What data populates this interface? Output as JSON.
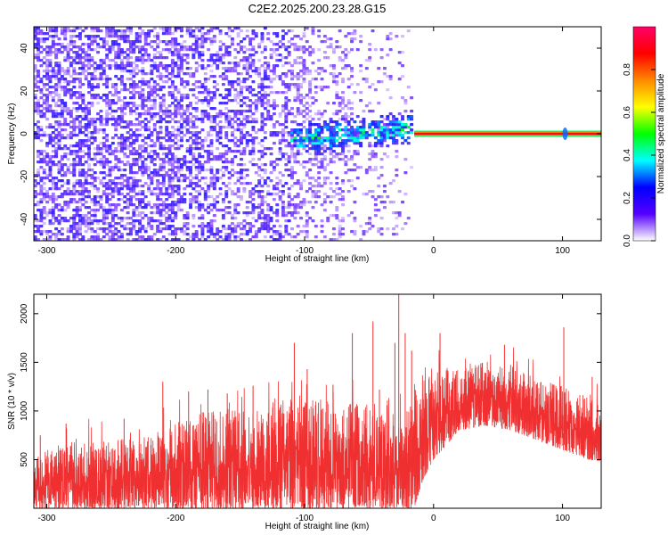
{
  "title": "C2E2.2025.200.23.28.G15",
  "chart_data": [
    {
      "type": "heatmap",
      "title": "C2E2.2025.200.23.28.G15",
      "xlabel": "Height of straight line (km)",
      "ylabel": "Frequency (Hz)",
      "xlim": [
        -310,
        130
      ],
      "ylim": [
        -50,
        50
      ],
      "xticks": [
        -300,
        -200,
        -100,
        0,
        100
      ],
      "yticks": [
        -40,
        -20,
        0,
        20,
        40
      ],
      "colorbar": {
        "label": "Normalized spectral amplitude",
        "range": [
          0,
          1
        ],
        "ticks": [
          0.0,
          0.2,
          0.4,
          0.6,
          0.8
        ],
        "colormap": [
          "#ffffff",
          "#5500ff",
          "#0000ff",
          "#00ffff",
          "#00ff00",
          "#ffff00",
          "#ff8800",
          "#ff0000",
          "#ff0066"
        ]
      },
      "features": {
        "noise_region_x": [
          -310,
          -15
        ],
        "signal_cluster_x": [
          -110,
          -15
        ],
        "signal_cluster_freq": [
          -10,
          6
        ],
        "line_x": [
          -15,
          130
        ],
        "line_freq": 0,
        "line_amplitude": 0.9,
        "spot_x": 102
      }
    },
    {
      "type": "line",
      "xlabel": "Height of straight line (km)",
      "ylabel": "SNR (10 * v/v)",
      "xlim": [
        -310,
        130
      ],
      "ylim": [
        0,
        2200
      ],
      "xticks": [
        -300,
        -200,
        -100,
        0,
        100
      ],
      "yticks": [
        500,
        1000,
        1500,
        2000
      ],
      "color": "#f03030",
      "envelope": {
        "x": [
          -310,
          -300,
          -280,
          -250,
          -220,
          -200,
          -180,
          -150,
          -120,
          -100,
          -80,
          -60,
          -40,
          -25,
          -15,
          -8,
          0,
          10,
          20,
          40,
          60,
          80,
          100,
          110,
          120,
          130
        ],
        "floor": [
          0,
          0,
          0,
          0,
          0,
          0,
          0,
          0,
          0,
          0,
          0,
          0,
          0,
          0,
          0,
          300,
          500,
          650,
          800,
          850,
          800,
          700,
          600,
          550,
          500,
          480
        ],
        "peak": [
          480,
          600,
          650,
          700,
          750,
          900,
          1000,
          1050,
          1100,
          1150,
          1100,
          1100,
          1000,
          950,
          1100,
          1350,
          1400,
          1450,
          1480,
          1500,
          1450,
          1350,
          1250,
          1200,
          1150,
          1100
        ]
      },
      "spikes": [
        {
          "x": -305,
          "y": 750
        },
        {
          "x": -285,
          "y": 870
        },
        {
          "x": -240,
          "y": 920
        },
        {
          "x": -210,
          "y": 1300
        },
        {
          "x": -190,
          "y": 1200
        },
        {
          "x": -175,
          "y": 1220
        },
        {
          "x": -160,
          "y": 1180
        },
        {
          "x": -140,
          "y": 1260
        },
        {
          "x": -108,
          "y": 1700
        },
        {
          "x": -98,
          "y": 1430
        },
        {
          "x": -78,
          "y": 1270
        },
        {
          "x": -63,
          "y": 1800
        },
        {
          "x": -47,
          "y": 1920
        },
        {
          "x": -42,
          "y": 1220
        },
        {
          "x": -30,
          "y": 1700
        },
        {
          "x": -27,
          "y": 2200
        },
        {
          "x": -22,
          "y": 1800
        },
        {
          "x": -17,
          "y": 1620
        },
        {
          "x": 5,
          "y": 1800
        },
        {
          "x": 55,
          "y": 1680
        },
        {
          "x": 101,
          "y": 1860
        },
        {
          "x": 123,
          "y": 1350
        }
      ]
    }
  ]
}
